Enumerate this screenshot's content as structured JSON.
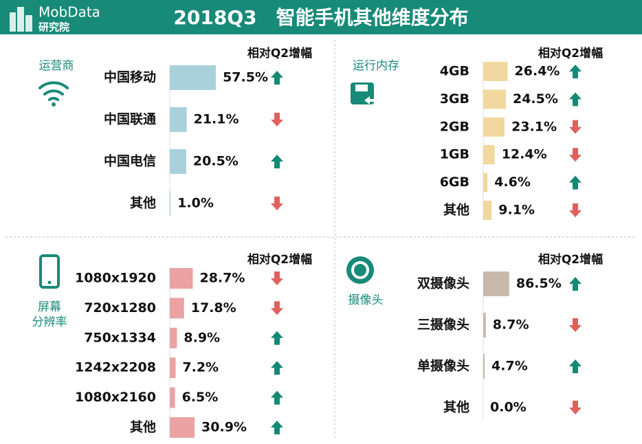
{
  "header": {
    "logo": "MobData",
    "logo_sub": "研究院",
    "title": "2018Q3　智能手机其他维度分布"
  },
  "chart_data": [
    {
      "type": "bar",
      "label": [
        "运营商"
      ],
      "trend_label": "相对Q2增幅",
      "color": "#a9d1dc",
      "categories": [
        "中国移动",
        "中国联通",
        "中国电信",
        "其他"
      ],
      "values": [
        57.5,
        21.1,
        20.5,
        1.0
      ],
      "value_labels": [
        "57.5%",
        "21.1%",
        "20.5%",
        "1.0%"
      ],
      "trend": [
        "up",
        "down",
        "up",
        "down"
      ],
      "xlim": [
        0,
        60
      ]
    },
    {
      "type": "bar",
      "label": [
        "运行内存"
      ],
      "trend_label": "相对Q2增幅",
      "color": "#f1d89f",
      "categories": [
        "4GB",
        "3GB",
        "2GB",
        "1GB",
        "6GB",
        "其他"
      ],
      "values": [
        26.4,
        24.5,
        23.1,
        12.4,
        4.6,
        9.1
      ],
      "value_labels": [
        "26.4%",
        "24.5%",
        "23.1%",
        "12.4%",
        "4.6%",
        "9.1%"
      ],
      "trend": [
        "up",
        "up",
        "down",
        "down",
        "up",
        "down"
      ],
      "xlim": [
        0,
        52
      ]
    },
    {
      "type": "bar",
      "label": [
        "屏幕",
        "分辨率"
      ],
      "trend_label": "相对Q2增幅",
      "color": "#eaa3a2",
      "categories": [
        "1080x1920",
        "720x1280",
        "750x1334",
        "1242x2208",
        "1080x2160",
        "其他"
      ],
      "values": [
        28.7,
        17.8,
        8.9,
        7.2,
        6.5,
        30.9
      ],
      "value_labels": [
        "28.7%",
        "17.8%",
        "8.9%",
        "7.2%",
        "6.5%",
        "30.9%"
      ],
      "trend": [
        "down",
        "down",
        "up",
        "up",
        "up",
        "up"
      ],
      "xlim": [
        0,
        60
      ]
    },
    {
      "type": "bar",
      "label": [
        "摄像头"
      ],
      "trend_label": "相对Q2增幅",
      "color": "#c9b9aa",
      "categories": [
        "双摄像头",
        "三摄像头",
        "单摄像头",
        "其他"
      ],
      "values": [
        86.5,
        8.7,
        4.7,
        0.0
      ],
      "value_labels": [
        "86.5%",
        "8.7%",
        "4.7%",
        "0.0%"
      ],
      "trend": [
        "up",
        "down",
        "up",
        "down"
      ],
      "xlim": [
        0,
        160
      ]
    }
  ]
}
